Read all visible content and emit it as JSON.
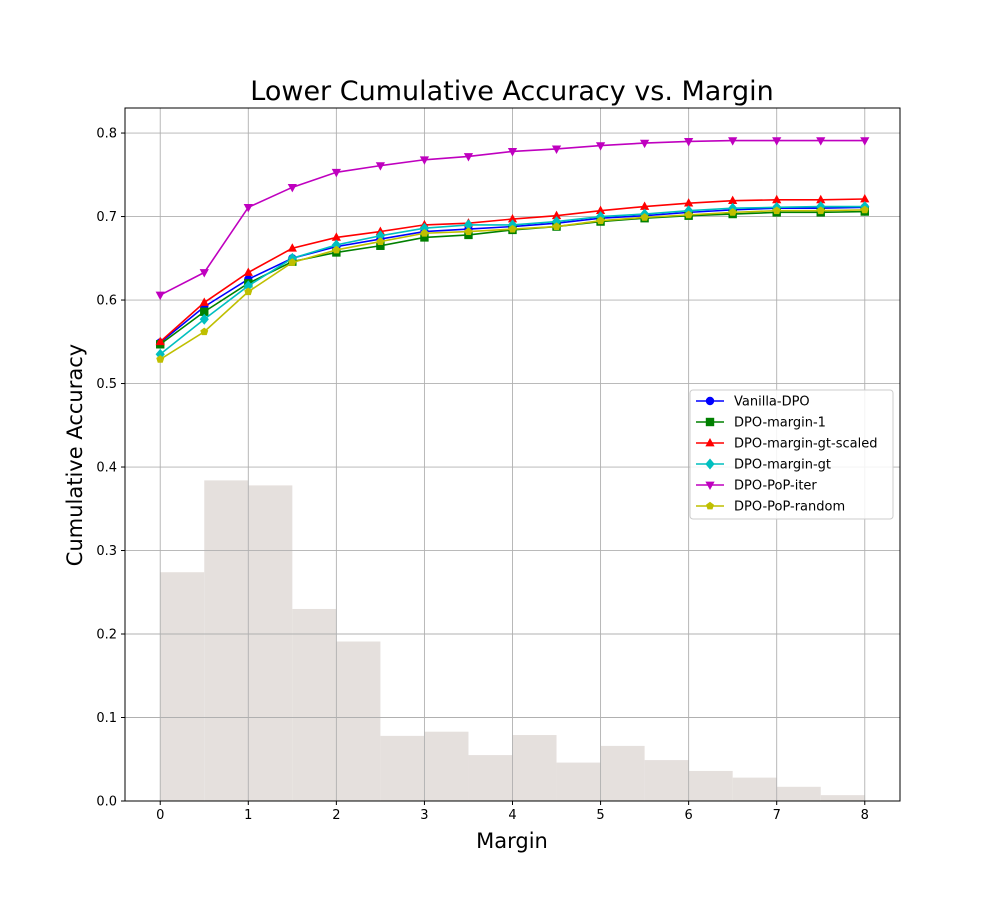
{
  "chart_data": {
    "type": "line",
    "title": "Lower Cumulative Accuracy vs. Margin",
    "xlabel": "Margin",
    "ylabel": "Cumulative Accuracy",
    "xlim": [
      -0.4,
      8.4
    ],
    "ylim": [
      0.0,
      0.83
    ],
    "xticks": [
      0,
      1,
      2,
      3,
      4,
      5,
      6,
      7,
      8
    ],
    "yticks": [
      0.0,
      0.1,
      0.2,
      0.3,
      0.4,
      0.5,
      0.6,
      0.7,
      0.8
    ],
    "xtick_labels": [
      "0",
      "1",
      "2",
      "3",
      "4",
      "5",
      "6",
      "7",
      "8"
    ],
    "ytick_labels": [
      "0.0",
      "0.1",
      "0.2",
      "0.3",
      "0.4",
      "0.5",
      "0.6",
      "0.7",
      "0.8"
    ],
    "grid": true,
    "legend_position": "center-right",
    "x": [
      0,
      0.5,
      1,
      1.5,
      2,
      2.5,
      3,
      3.5,
      4,
      4.5,
      5,
      5.5,
      6,
      6.5,
      7,
      7.5,
      8
    ],
    "series": [
      {
        "name": "Vanilla-DPO",
        "color": "#0000ff",
        "marker": "circle",
        "values": [
          0.549,
          0.592,
          0.625,
          0.65,
          0.664,
          0.673,
          0.682,
          0.685,
          0.688,
          0.692,
          0.698,
          0.701,
          0.705,
          0.708,
          0.71,
          0.71,
          0.711
        ]
      },
      {
        "name": "DPO-margin-1",
        "color": "#008000",
        "marker": "square",
        "values": [
          0.547,
          0.586,
          0.62,
          0.646,
          0.657,
          0.665,
          0.675,
          0.678,
          0.684,
          0.688,
          0.694,
          0.698,
          0.701,
          0.703,
          0.705,
          0.705,
          0.706
        ]
      },
      {
        "name": "DPO-margin-gt-scaled",
        "color": "#ff0000",
        "marker": "triangle-up",
        "values": [
          0.55,
          0.597,
          0.633,
          0.662,
          0.675,
          0.682,
          0.69,
          0.692,
          0.697,
          0.701,
          0.707,
          0.712,
          0.716,
          0.719,
          0.72,
          0.72,
          0.721
        ]
      },
      {
        "name": "DPO-margin-gt",
        "color": "#00bfbf",
        "marker": "diamond",
        "values": [
          0.535,
          0.577,
          0.617,
          0.65,
          0.666,
          0.677,
          0.686,
          0.69,
          0.69,
          0.694,
          0.7,
          0.703,
          0.707,
          0.71,
          0.711,
          0.712,
          0.712
        ]
      },
      {
        "name": "DPO-PoP-iter",
        "color": "#bf00bf",
        "marker": "triangle-down",
        "values": [
          0.606,
          0.633,
          0.711,
          0.735,
          0.753,
          0.761,
          0.768,
          0.772,
          0.778,
          0.781,
          0.785,
          0.788,
          0.79,
          0.791,
          0.791,
          0.791,
          0.791
        ]
      },
      {
        "name": "DPO-PoP-random",
        "color": "#bfbf00",
        "marker": "pentagon",
        "values": [
          0.529,
          0.562,
          0.61,
          0.645,
          0.66,
          0.67,
          0.68,
          0.682,
          0.685,
          0.688,
          0.695,
          0.699,
          0.702,
          0.705,
          0.707,
          0.707,
          0.708
        ]
      }
    ],
    "histogram": {
      "color": "#e5e0dd",
      "bin_edges": [
        0,
        0.5,
        1,
        1.5,
        2,
        2.5,
        3,
        3.5,
        4,
        4.5,
        5,
        5.5,
        6,
        6.5,
        7,
        7.5,
        8
      ],
      "values": [
        0.274,
        0.384,
        0.378,
        0.23,
        0.191,
        0.078,
        0.083,
        0.055,
        0.079,
        0.046,
        0.066,
        0.049,
        0.036,
        0.028,
        0.017,
        0.007
      ]
    }
  }
}
